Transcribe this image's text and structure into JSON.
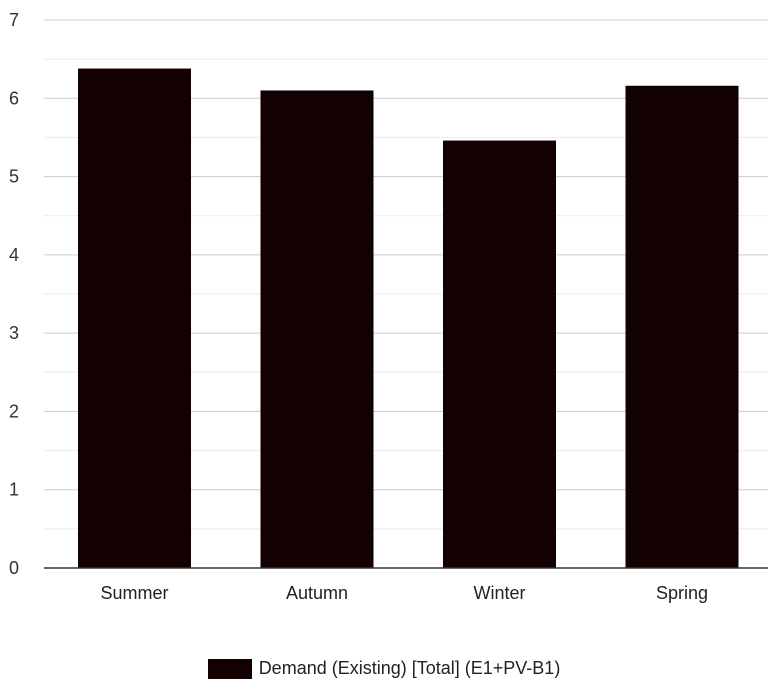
{
  "chart_data": {
    "type": "bar",
    "categories": [
      "Summer",
      "Autumn",
      "Winter",
      "Spring"
    ],
    "series": [
      {
        "name": "Demand (Existing) [Total] (E1+PV-B1)",
        "values": [
          6.38,
          6.1,
          5.46,
          6.16
        ]
      }
    ],
    "ylim": [
      0,
      7
    ],
    "yticks": [
      0,
      1,
      2,
      3,
      4,
      5,
      6,
      7
    ],
    "grid": true,
    "legend": "bottom",
    "colors": {
      "bar": "#130000",
      "grid": "#cccccc",
      "minor_grid": "#ebebeb",
      "axis": "#333333"
    }
  }
}
